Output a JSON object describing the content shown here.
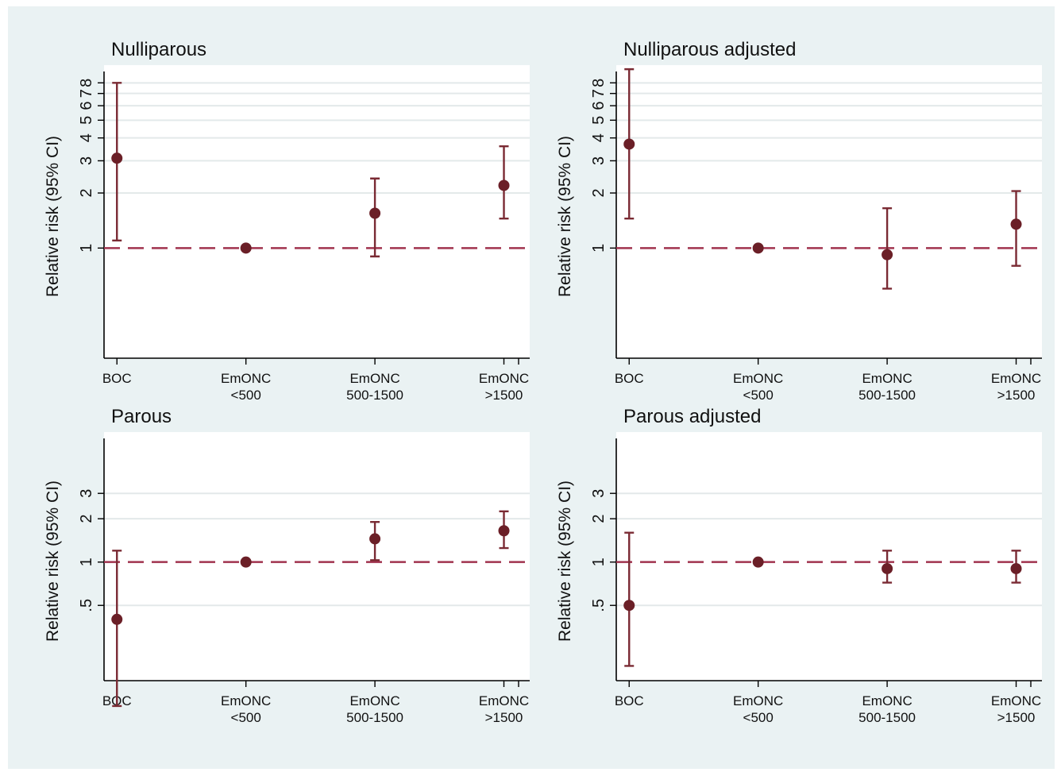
{
  "figure": {
    "colors": {
      "background": "#eaf2f3",
      "plot": "#ffffff",
      "marker": "#6b1f27",
      "ci": "#7a2a33",
      "reference_line": "#a1334e"
    }
  },
  "chart_data": [
    {
      "type": "scatter",
      "title": "Nulliparous",
      "ylabel": "Relative risk (95% CI)",
      "xlabel": "",
      "y_scale": "log",
      "ylim": [
        0.25,
        10
      ],
      "y_ticks": [
        1,
        2,
        3,
        4,
        5,
        6,
        7,
        8
      ],
      "y_tick_labels": [
        "1",
        "2",
        "3",
        "4",
        "5",
        "6",
        "7",
        "8"
      ],
      "grid": true,
      "reference_line": 1,
      "categories": [
        [
          "BOC"
        ],
        [
          "EmONC",
          "<500"
        ],
        [
          "EmONC",
          "500-1500"
        ],
        [
          "EmONC",
          ">1500"
        ]
      ],
      "x": [
        1,
        2,
        3,
        4
      ],
      "xlim": [
        0.9,
        4.2
      ],
      "estimate": [
        3.1,
        1.0,
        1.55,
        2.2
      ],
      "ci_low": [
        1.1,
        1.0,
        0.9,
        1.45
      ],
      "ci_high": [
        8.0,
        1.0,
        2.4,
        3.6
      ]
    },
    {
      "type": "scatter",
      "title": "Nulliparous adjusted",
      "ylabel": "Relative risk (95% CI)",
      "xlabel": "",
      "y_scale": "log",
      "ylim": [
        0.25,
        10
      ],
      "y_ticks": [
        1,
        2,
        3,
        4,
        5,
        6,
        7,
        8
      ],
      "y_tick_labels": [
        "1",
        "2",
        "3",
        "4",
        "5",
        "6",
        "7",
        "8"
      ],
      "grid": true,
      "reference_line": 1,
      "categories": [
        [
          "BOC"
        ],
        [
          "EmONC",
          "<500"
        ],
        [
          "EmONC",
          "500-1500"
        ],
        [
          "EmONC",
          ">1500"
        ]
      ],
      "x": [
        1,
        2,
        3,
        4
      ],
      "xlim": [
        0.9,
        4.2
      ],
      "estimate": [
        3.7,
        1.0,
        0.92,
        1.35
      ],
      "ci_low": [
        1.45,
        1.0,
        0.6,
        0.8
      ],
      "ci_high": [
        9.5,
        1.0,
        1.65,
        2.05
      ]
    },
    {
      "type": "scatter",
      "title": "Parous",
      "ylabel": "Relative risk (95% CI)",
      "xlabel": "",
      "y_scale": "log",
      "ylim": [
        0.15,
        8
      ],
      "y_ticks": [
        0.5,
        1,
        2,
        3
      ],
      "y_tick_labels": [
        ".5",
        "1",
        "2",
        "3"
      ],
      "grid": true,
      "reference_line": 1,
      "categories": [
        [
          "BOC"
        ],
        [
          "EmONC",
          "<500"
        ],
        [
          "EmONC",
          "500-1500"
        ],
        [
          "EmONC",
          ">1500"
        ]
      ],
      "x": [
        1,
        2,
        3,
        4
      ],
      "xlim": [
        0.9,
        4.2
      ],
      "estimate": [
        0.4,
        1.0,
        1.45,
        1.65
      ],
      "ci_low": [
        0.1,
        1.0,
        1.03,
        1.25
      ],
      "ci_high": [
        1.2,
        1.0,
        1.9,
        2.25
      ]
    },
    {
      "type": "scatter",
      "title": "Parous adjusted",
      "ylabel": "Relative risk (95% CI)",
      "xlabel": "",
      "y_scale": "log",
      "ylim": [
        0.15,
        8
      ],
      "y_ticks": [
        0.5,
        1,
        2,
        3
      ],
      "y_tick_labels": [
        ".5",
        "1",
        "2",
        "3"
      ],
      "grid": true,
      "reference_line": 1,
      "categories": [
        [
          "BOC"
        ],
        [
          "EmONC",
          "<500"
        ],
        [
          "EmONC",
          "500-1500"
        ],
        [
          "EmONC",
          ">1500"
        ]
      ],
      "x": [
        1,
        2,
        3,
        4
      ],
      "xlim": [
        0.9,
        4.2
      ],
      "estimate": [
        0.5,
        1.0,
        0.9,
        0.9
      ],
      "ci_low": [
        0.19,
        1.0,
        0.72,
        0.72
      ],
      "ci_high": [
        1.6,
        1.0,
        1.2,
        1.2
      ]
    }
  ]
}
